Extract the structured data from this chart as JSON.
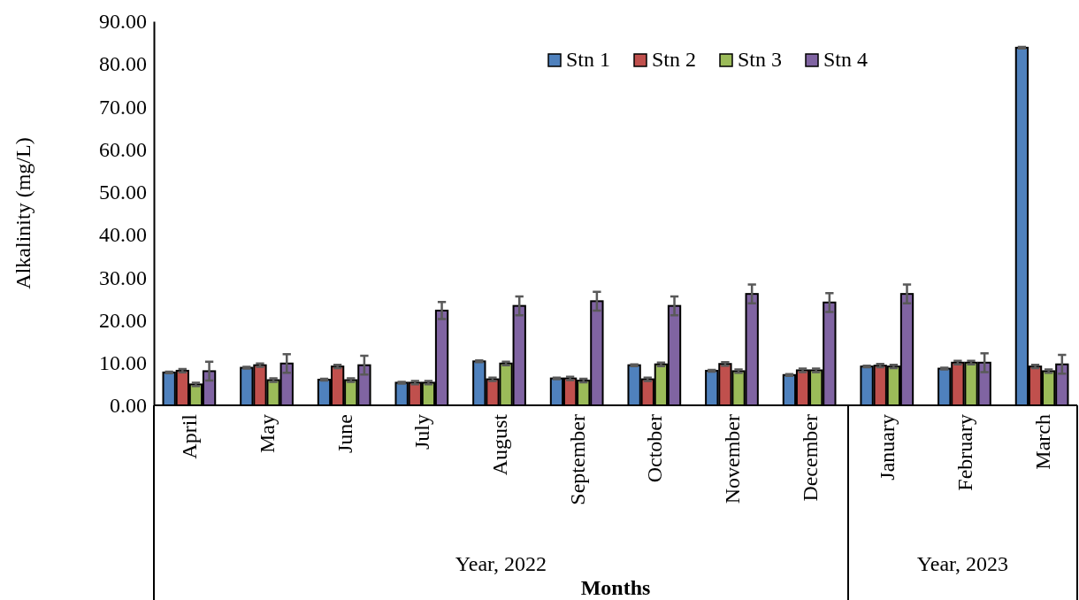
{
  "chart_data": {
    "type": "bar",
    "xlabel": "Months",
    "ylabel": "Alkalinity (mg/L)",
    "categories": [
      "April",
      "May",
      "June",
      "July",
      "August",
      "September",
      "October",
      "November",
      "December",
      "January",
      "February",
      "March"
    ],
    "series": [
      {
        "name": "Stn 1",
        "color": "#4f81bd",
        "values": [
          7.7,
          8.8,
          6.0,
          5.3,
          10.3,
          6.3,
          9.4,
          8.1,
          7.1,
          9.1,
          8.6,
          83.8
        ],
        "errors": [
          0.2,
          0.2,
          0.2,
          0.2,
          0.2,
          0.2,
          0.2,
          0.2,
          0.2,
          0.2,
          0.2,
          0.2
        ]
      },
      {
        "name": "Stn 2",
        "color": "#c0504d",
        "values": [
          8.1,
          9.4,
          9.1,
          5.3,
          6.1,
          6.3,
          6.1,
          9.7,
          8.2,
          9.3,
          10.0,
          9.1
        ],
        "errors": [
          0.4,
          0.4,
          0.4,
          0.4,
          0.4,
          0.4,
          0.4,
          0.4,
          0.4,
          0.4,
          0.4,
          0.4
        ]
      },
      {
        "name": "Stn 3",
        "color": "#9bbb59",
        "values": [
          4.9,
          5.9,
          5.9,
          5.3,
          9.8,
          5.8,
          9.6,
          8.0,
          8.2,
          9.1,
          10.0,
          8.0
        ],
        "errors": [
          0.4,
          0.4,
          0.4,
          0.4,
          0.4,
          0.4,
          0.4,
          0.4,
          0.4,
          0.4,
          0.4,
          0.4
        ]
      },
      {
        "name": "Stn 4",
        "color": "#8064a2",
        "values": [
          8.0,
          9.8,
          9.4,
          22.2,
          23.3,
          24.4,
          23.3,
          26.1,
          24.1,
          26.1,
          10.0,
          9.6
        ],
        "errors": [
          2.2,
          2.2,
          2.2,
          2.0,
          2.2,
          2.2,
          2.2,
          2.2,
          2.2,
          2.2,
          2.2,
          2.2
        ]
      }
    ],
    "ylim": [
      0,
      90
    ],
    "yticks": [
      {
        "value": 0,
        "label": "0.00"
      },
      {
        "value": 10,
        "label": "10.00"
      },
      {
        "value": 20,
        "label": "20.00"
      },
      {
        "value": 30,
        "label": "30.00"
      },
      {
        "value": 40,
        "label": "40.00"
      },
      {
        "value": 50,
        "label": "50.00"
      },
      {
        "value": 60,
        "label": "60.00"
      },
      {
        "value": 70,
        "label": "70.00"
      },
      {
        "value": 80,
        "label": "80.00"
      },
      {
        "value": 90,
        "label": "90.00"
      }
    ],
    "annotations": [
      "Year, 2022",
      "Year, 2023"
    ],
    "grid": false,
    "legend": "top right"
  }
}
